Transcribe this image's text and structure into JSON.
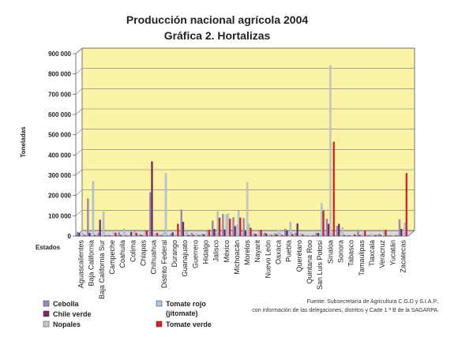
{
  "chart_data": {
    "type": "bar",
    "title": "Producción nacional agrícola 2004",
    "subtitle": "Gráfica 2. Hortalizas",
    "ylabel": "Toneladas",
    "xlabel": "Estados",
    "ylim": [
      0,
      900000
    ],
    "yticks": [
      0,
      100000,
      200000,
      300000,
      400000,
      500000,
      600000,
      700000,
      800000,
      900000
    ],
    "ytick_labels": [
      "0",
      "100 000",
      "200 000",
      "300 000",
      "400 000",
      "500 000",
      "600 000",
      "700 000",
      "800 000",
      "900 000"
    ],
    "grid": true,
    "legend_position": "bottom-left",
    "categories": [
      "Aguascalientes",
      "Baja California",
      "Baja California Sur",
      "Campeche",
      "Coahuila",
      "Colima",
      "Chiapas",
      "Chihuahua",
      "Distrito Federal",
      "Durango",
      "Guanajuato",
      "Guerrero",
      "Hidalgo",
      "Jalisco",
      "México",
      "Michoacán",
      "Morelos",
      "Nayarit",
      "Nuevo León",
      "Oaxaca",
      "Puebla",
      "Querétaro",
      "Quintana Roo",
      "San Luis Potosí",
      "Sinaloa",
      "Sonora",
      "Tabasco",
      "Tamaulipas",
      "Tlaxcala",
      "Veracruz",
      "Yucatán",
      "Zacatecas"
    ],
    "series": [
      {
        "name": "Cebolla",
        "color": "#9b86c8",
        "values": [
          20000,
          185000,
          15000,
          5000,
          18000,
          2000,
          8000,
          215000,
          6000,
          10000,
          130000,
          15000,
          10000,
          75000,
          108000,
          92000,
          88000,
          12000,
          15000,
          12000,
          35000,
          15000,
          2000,
          15000,
          85000,
          50000,
          3000,
          22000,
          5000,
          10000,
          3000,
          82000
        ]
      },
      {
        "name": "Chile verde",
        "color": "#7a2a6a",
        "values": [
          15000,
          15000,
          80000,
          2000,
          5000,
          20000,
          5000,
          368000,
          3000,
          18000,
          70000,
          5000,
          8000,
          35000,
          32000,
          48000,
          25000,
          10000,
          12000,
          8000,
          25000,
          62000,
          2000,
          15000,
          60000,
          60000,
          3000,
          5000,
          2000,
          5000,
          2000,
          35000
        ]
      },
      {
        "name": "Nopales",
        "color": "#c8c8c8",
        "values": [
          2000,
          3000,
          5000,
          2000,
          3000,
          2000,
          3000,
          5000,
          20000,
          3000,
          5000,
          8000,
          8000,
          15000,
          105000,
          55000,
          265000,
          5000,
          3000,
          30000,
          8000,
          3000,
          2000,
          10000,
          842000,
          3000,
          2000,
          3000,
          10000,
          3000,
          2000,
          15000
        ]
      },
      {
        "name": "Tomate rojo (jitomate)",
        "color": "#a8c8e8",
        "values": [
          15000,
          270000,
          120000,
          18000,
          35000,
          25000,
          25000,
          10000,
          310000,
          8000,
          20000,
          8000,
          25000,
          120000,
          110000,
          125000,
          60000,
          25000,
          10000,
          15000,
          70000,
          12000,
          3000,
          162000,
          12000,
          42000,
          3000,
          10000,
          3000,
          20000,
          3000,
          65000
        ]
      },
      {
        "name": "Tomate verde",
        "color": "#e02020",
        "values": [
          5000,
          5000,
          3000,
          15000,
          3000,
          15000,
          25000,
          15000,
          2000,
          60000,
          5000,
          5000,
          30000,
          90000,
          85000,
          90000,
          40000,
          30000,
          5000,
          5000,
          10000,
          8000,
          3000,
          125000,
          465000,
          5000,
          8000,
          25000,
          5000,
          30000,
          3000,
          310000
        ]
      }
    ]
  },
  "source_note": {
    "line1": "Fuente: Subsecretaría de Agricultura C.G.D y S.I.A.P.,",
    "line2": "con información de las delegaciones, distritos y Cade 1 ª B de la SAGARPA."
  }
}
